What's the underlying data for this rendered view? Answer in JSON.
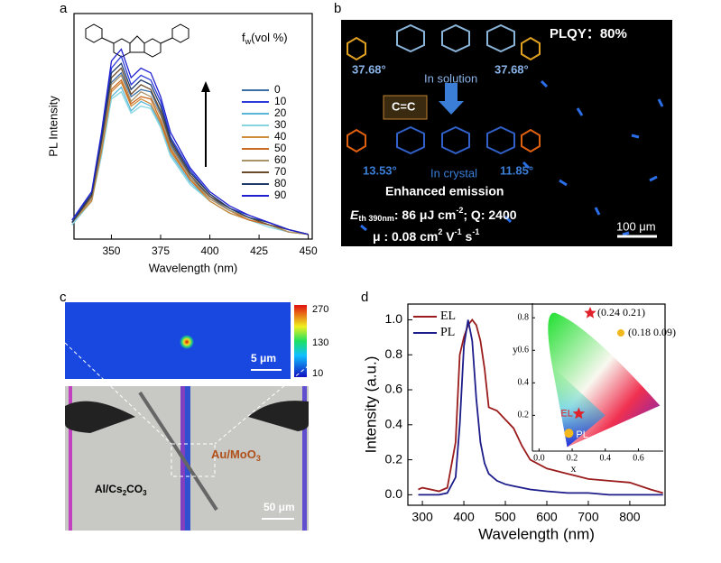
{
  "panel_labels": [
    "a",
    "b",
    "c",
    "d"
  ],
  "chart_data": [
    {
      "type": "line",
      "x_label": "Wavelength (nm)",
      "y_label": "PL Intensity",
      "legend_title": {
        "main": "f",
        "sub": "w",
        "rest": "(vol  %)"
      },
      "x": [
        330,
        340,
        345,
        350,
        355,
        360,
        365,
        370,
        375,
        380,
        390,
        400,
        410,
        420,
        430,
        440,
        450
      ],
      "xlim": [
        331,
        452
      ],
      "xticks": [
        350,
        375,
        400,
        425,
        450
      ],
      "ylim": [
        0,
        0.95
      ],
      "series": [
        {
          "name": "0",
          "color": "#3a6ea5",
          "values": [
            0.07,
            0.18,
            0.4,
            0.66,
            0.7,
            0.6,
            0.63,
            0.62,
            0.53,
            0.4,
            0.26,
            0.18,
            0.12,
            0.09,
            0.06,
            0.04,
            0.02
          ]
        },
        {
          "name": "10",
          "color": "#2a3bd8",
          "values": [
            0.08,
            0.19,
            0.43,
            0.72,
            0.77,
            0.65,
            0.69,
            0.67,
            0.58,
            0.43,
            0.29,
            0.19,
            0.13,
            0.1,
            0.07,
            0.04,
            0.02
          ]
        },
        {
          "name": "20",
          "color": "#5bb5d8",
          "values": [
            0.06,
            0.16,
            0.36,
            0.6,
            0.64,
            0.54,
            0.58,
            0.56,
            0.48,
            0.36,
            0.24,
            0.16,
            0.11,
            0.08,
            0.06,
            0.03,
            0.02
          ]
        },
        {
          "name": "30",
          "color": "#86d6e2",
          "values": [
            0.06,
            0.16,
            0.35,
            0.59,
            0.62,
            0.53,
            0.56,
            0.55,
            0.47,
            0.35,
            0.23,
            0.16,
            0.11,
            0.08,
            0.05,
            0.03,
            0.02
          ]
        },
        {
          "name": "40",
          "color": "#d08a3a",
          "values": [
            0.07,
            0.16,
            0.37,
            0.62,
            0.66,
            0.56,
            0.59,
            0.57,
            0.49,
            0.37,
            0.25,
            0.16,
            0.11,
            0.08,
            0.06,
            0.03,
            0.02
          ]
        },
        {
          "name": "50",
          "color": "#c96a20",
          "values": [
            0.07,
            0.17,
            0.38,
            0.63,
            0.67,
            0.57,
            0.6,
            0.59,
            0.5,
            0.38,
            0.25,
            0.17,
            0.12,
            0.08,
            0.06,
            0.03,
            0.02
          ]
        },
        {
          "name": "60",
          "color": "#a8936a",
          "values": [
            0.07,
            0.17,
            0.39,
            0.65,
            0.69,
            0.58,
            0.62,
            0.6,
            0.52,
            0.39,
            0.26,
            0.17,
            0.12,
            0.09,
            0.06,
            0.03,
            0.02
          ]
        },
        {
          "name": "70",
          "color": "#6b4a2a",
          "values": [
            0.07,
            0.18,
            0.41,
            0.68,
            0.72,
            0.61,
            0.65,
            0.63,
            0.54,
            0.41,
            0.27,
            0.18,
            0.13,
            0.09,
            0.06,
            0.04,
            0.02
          ]
        },
        {
          "name": "80",
          "color": "#1d3a6a",
          "values": [
            0.07,
            0.19,
            0.42,
            0.7,
            0.74,
            0.63,
            0.67,
            0.65,
            0.56,
            0.42,
            0.28,
            0.19,
            0.13,
            0.09,
            0.07,
            0.04,
            0.02
          ]
        },
        {
          "name": "90",
          "color": "#2020d0",
          "values": [
            0.08,
            0.2,
            0.45,
            0.75,
            0.8,
            0.68,
            0.72,
            0.7,
            0.6,
            0.45,
            0.3,
            0.2,
            0.14,
            0.1,
            0.07,
            0.04,
            0.02
          ]
        }
      ]
    },
    {
      "type": "line",
      "x_label": "Wavelength (nm)",
      "y_label": "Intensity (a.u.)",
      "x": [
        290,
        300,
        320,
        340,
        360,
        380,
        390,
        400,
        410,
        420,
        430,
        440,
        450,
        460,
        480,
        500,
        520,
        540,
        560,
        600,
        650,
        700,
        750,
        800,
        850,
        880
      ],
      "xlim": [
        265,
        885
      ],
      "xticks": [
        300,
        400,
        500,
        600,
        700,
        800
      ],
      "ylim": [
        -0.06,
        1.09
      ],
      "yticks": [
        {
          "value": 0,
          "label": "0.0"
        },
        0.2,
        0.4,
        0.6,
        0.8,
        {
          "value": 1,
          "label": "1.0"
        }
      ],
      "series": [
        {
          "name": "EL",
          "color": "#9a1c1c",
          "values": [
            0.03,
            0.04,
            0.03,
            0.02,
            0.04,
            0.3,
            0.8,
            0.9,
            0.97,
            1.0,
            0.97,
            0.88,
            0.72,
            0.5,
            0.48,
            0.43,
            0.38,
            0.28,
            0.2,
            0.15,
            0.12,
            0.09,
            0.08,
            0.07,
            0.03,
            0.01
          ]
        },
        {
          "name": "PL",
          "color": "#1c1c8a",
          "values": [
            0,
            0,
            0,
            0,
            0.01,
            0.1,
            0.4,
            0.85,
            1.0,
            0.88,
            0.55,
            0.3,
            0.18,
            0.12,
            0.08,
            0.06,
            0.05,
            0.04,
            0.03,
            0.02,
            0.01,
            0.01,
            0,
            0,
            0,
            0
          ]
        }
      ],
      "inset": {
        "x_label": "x",
        "y_label": "y",
        "xlim": [
          -0.04,
          0.75
        ],
        "ylim": [
          -0.02,
          0.89
        ],
        "xticks": [
          {
            "value": 0,
            "label": "0.0"
          },
          0.2,
          0.4,
          0.6
        ],
        "yticks": [
          0.2,
          0.4,
          0.6,
          0.8
        ],
        "points": [
          {
            "name": "EL",
            "x": 0.24,
            "y": 0.21,
            "label": "(0.24 0.21)",
            "color": "#e0202a"
          },
          {
            "name": "PL",
            "x": 0.18,
            "y": 0.09,
            "label": "(0.18 0.09)",
            "color": "#f2b81e"
          }
        ]
      }
    }
  ],
  "panel_b": {
    "plqy": "PLQY：80%",
    "angle_left_top": "37.68°",
    "angle_right_top": "37.68°",
    "solution": "In solution",
    "bond": "C=C",
    "angle_left_bottom": "13.53°",
    "crystal": "In crystal",
    "angle_right_bottom": "11.85°",
    "emission": "Enhanced emission",
    "threshold": {
      "e": "E",
      "sub": "th 390nm",
      "rest": ": 86 μJ cm",
      "sup": "-2",
      "tail": "; Q: 2400"
    },
    "mobility": {
      "a": "μ : 0.08 cm",
      "s1": "2",
      "b": " V",
      "s2": "-1",
      "c": " s",
      "s3": "-1"
    },
    "scale": "100 μm"
  },
  "panel_c": {
    "colorbar_ticks": [
      270,
      130,
      10
    ],
    "scale_top": "5 μm",
    "right_label": {
      "a": "Au/MoO",
      "sub": "3"
    },
    "left_label": {
      "a": "Al/Cs",
      "s1": "2",
      "b": "CO",
      "s2": "3"
    },
    "scale_bottom": "50 μm"
  }
}
